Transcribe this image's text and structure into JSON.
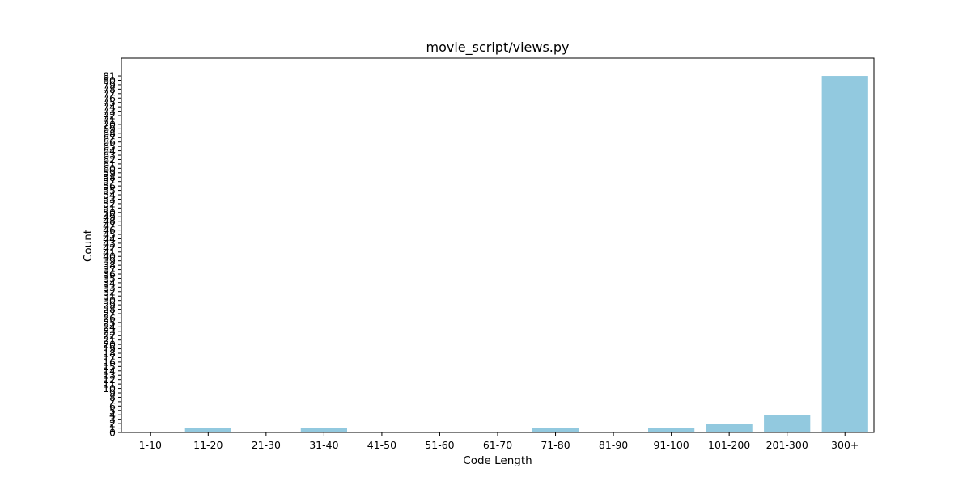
{
  "chart_data": {
    "type": "bar",
    "title": "movie_script/views.py",
    "xlabel": "Code Length",
    "ylabel": "Count",
    "categories": [
      "1-10",
      "11-20",
      "21-30",
      "31-40",
      "41-50",
      "51-60",
      "61-70",
      "71-80",
      "81-90",
      "91-100",
      "101-200",
      "201-300",
      "300+"
    ],
    "values": [
      0,
      1,
      0,
      1,
      0,
      0,
      0,
      1,
      0,
      1,
      2,
      4,
      81
    ],
    "ylim": [
      0,
      85.05
    ],
    "yticks": [
      0,
      1,
      2,
      3,
      4,
      5,
      6,
      7,
      8,
      9,
      10,
      11,
      12,
      13,
      14,
      15,
      16,
      17,
      18,
      19,
      20,
      21,
      22,
      23,
      24,
      25,
      26,
      27,
      28,
      29,
      30,
      31,
      32,
      33,
      34,
      35,
      36,
      37,
      38,
      39,
      40,
      41,
      42,
      43,
      44,
      45,
      46,
      47,
      48,
      49,
      50,
      51,
      52,
      53,
      54,
      55,
      56,
      57,
      58,
      59,
      60,
      61,
      62,
      63,
      64,
      65,
      66,
      67,
      68,
      69,
      70,
      71,
      72,
      73,
      74,
      75,
      76,
      77,
      78,
      79,
      80,
      81
    ],
    "bar_color": "#92c9df",
    "grid": false,
    "legend": "none"
  }
}
